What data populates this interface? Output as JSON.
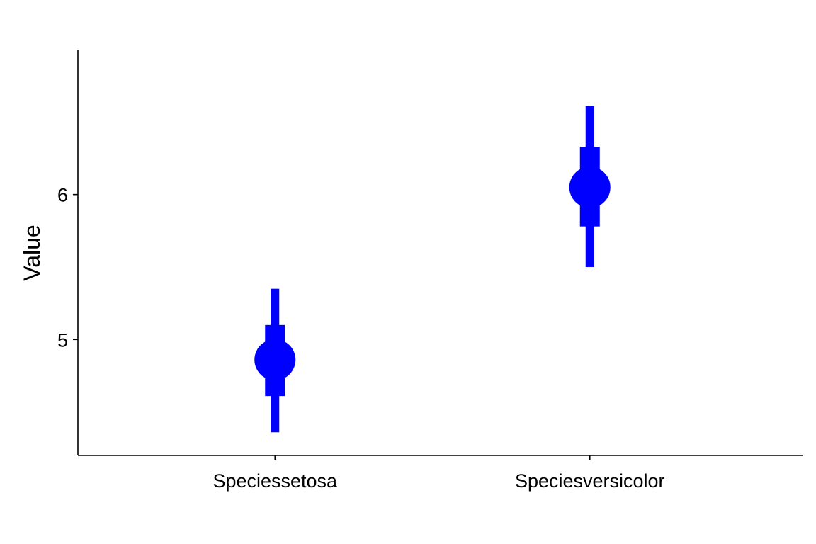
{
  "chart_data": {
    "type": "scatter",
    "subtype": "point-interval",
    "categories": [
      "Speciessetosa",
      "Speciesversicolor"
    ],
    "points": [
      {
        "category": "Speciessetosa",
        "estimate": 4.86,
        "inner_interval": [
          4.61,
          5.1
        ],
        "outer_interval": [
          4.36,
          5.35
        ]
      },
      {
        "category": "Speciesversicolor",
        "estimate": 6.05,
        "inner_interval": [
          5.78,
          6.33
        ],
        "outer_interval": [
          5.5,
          6.61
        ]
      }
    ],
    "title": "",
    "xlabel": "",
    "ylabel": "Value",
    "ylim": [
      4.2,
      7.0
    ],
    "yticks": [
      5,
      6
    ],
    "yticklabels": [
      "5",
      "6"
    ],
    "grid": false,
    "legend": "none",
    "colors": {
      "marker": "#0000ff",
      "axis": "#000000",
      "background": "#ffffff"
    }
  }
}
